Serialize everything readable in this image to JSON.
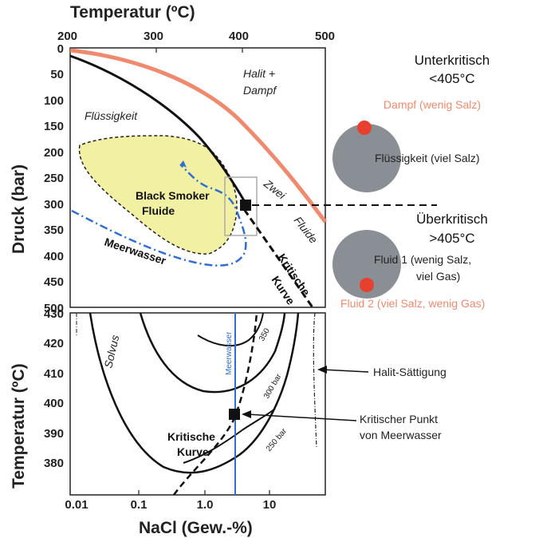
{
  "top_panel": {
    "x_axis_title": "Temperatur (ºC)",
    "x_ticks": [
      "200",
      "300",
      "400",
      "500"
    ],
    "y_axis_title": "Druck (bar)",
    "y_ticks": [
      "0",
      "50",
      "100",
      "150",
      "200",
      "250",
      "300",
      "350",
      "400",
      "450",
      "500"
    ],
    "labels": {
      "halit_line1": "Halit +",
      "halit_line2": "Dampf",
      "fluessigkeit": "Flüssigkeit",
      "black_smoker_line1": "Black Smoker",
      "black_smoker_line2": "Fluide",
      "zwei": "Zwei",
      "fluide": "Fluide",
      "meerwasser": "Meerwasser",
      "kritische": "Kritische",
      "kurve": "Kurve"
    }
  },
  "bottom_panel": {
    "x_axis_title": "NaCl (Gew.-%)",
    "x_ticks": [
      "0.01",
      "0.1",
      "1.0",
      "10"
    ],
    "y_axis_title": "Temperatur (ºC)",
    "y_ticks": [
      "430",
      "420",
      "410",
      "400",
      "390",
      "380"
    ],
    "labels": {
      "solvus": "Solvus",
      "meerwasser": "Meerwasser",
      "kritische": "Kritische",
      "kurve": "Kurve",
      "bar350": "350",
      "bar300": "300 bar",
      "bar250": "250 bar"
    }
  },
  "side": {
    "unterkritisch": "Unterkritisch",
    "unter_temp": "<405°C",
    "dampf": "Dampf (wenig Salz)",
    "fl_viel_salz": "Flüssigkeit (viel Salz)",
    "ueberkritisch": "Überkritisch",
    "ueber_temp": ">405°C",
    "fluid1_line1": "Fluid 1 (wenig Salz,",
    "fluid1_line2": "viel Gas)",
    "fluid2": "Fluid 2 (viel Salz, wenig Gas)",
    "halit_saettigung": "Halit-Sättigung",
    "krit_punkt_line1": "Kritischer Punkt",
    "krit_punkt_line2": "von Meerwasser"
  },
  "colors": {
    "orange": "#f08a6e",
    "yellow": "#f2f0a2",
    "blue": "#2f6fd0",
    "grey_disc": "#8a8f96",
    "red_dot": "#e8402e"
  }
}
